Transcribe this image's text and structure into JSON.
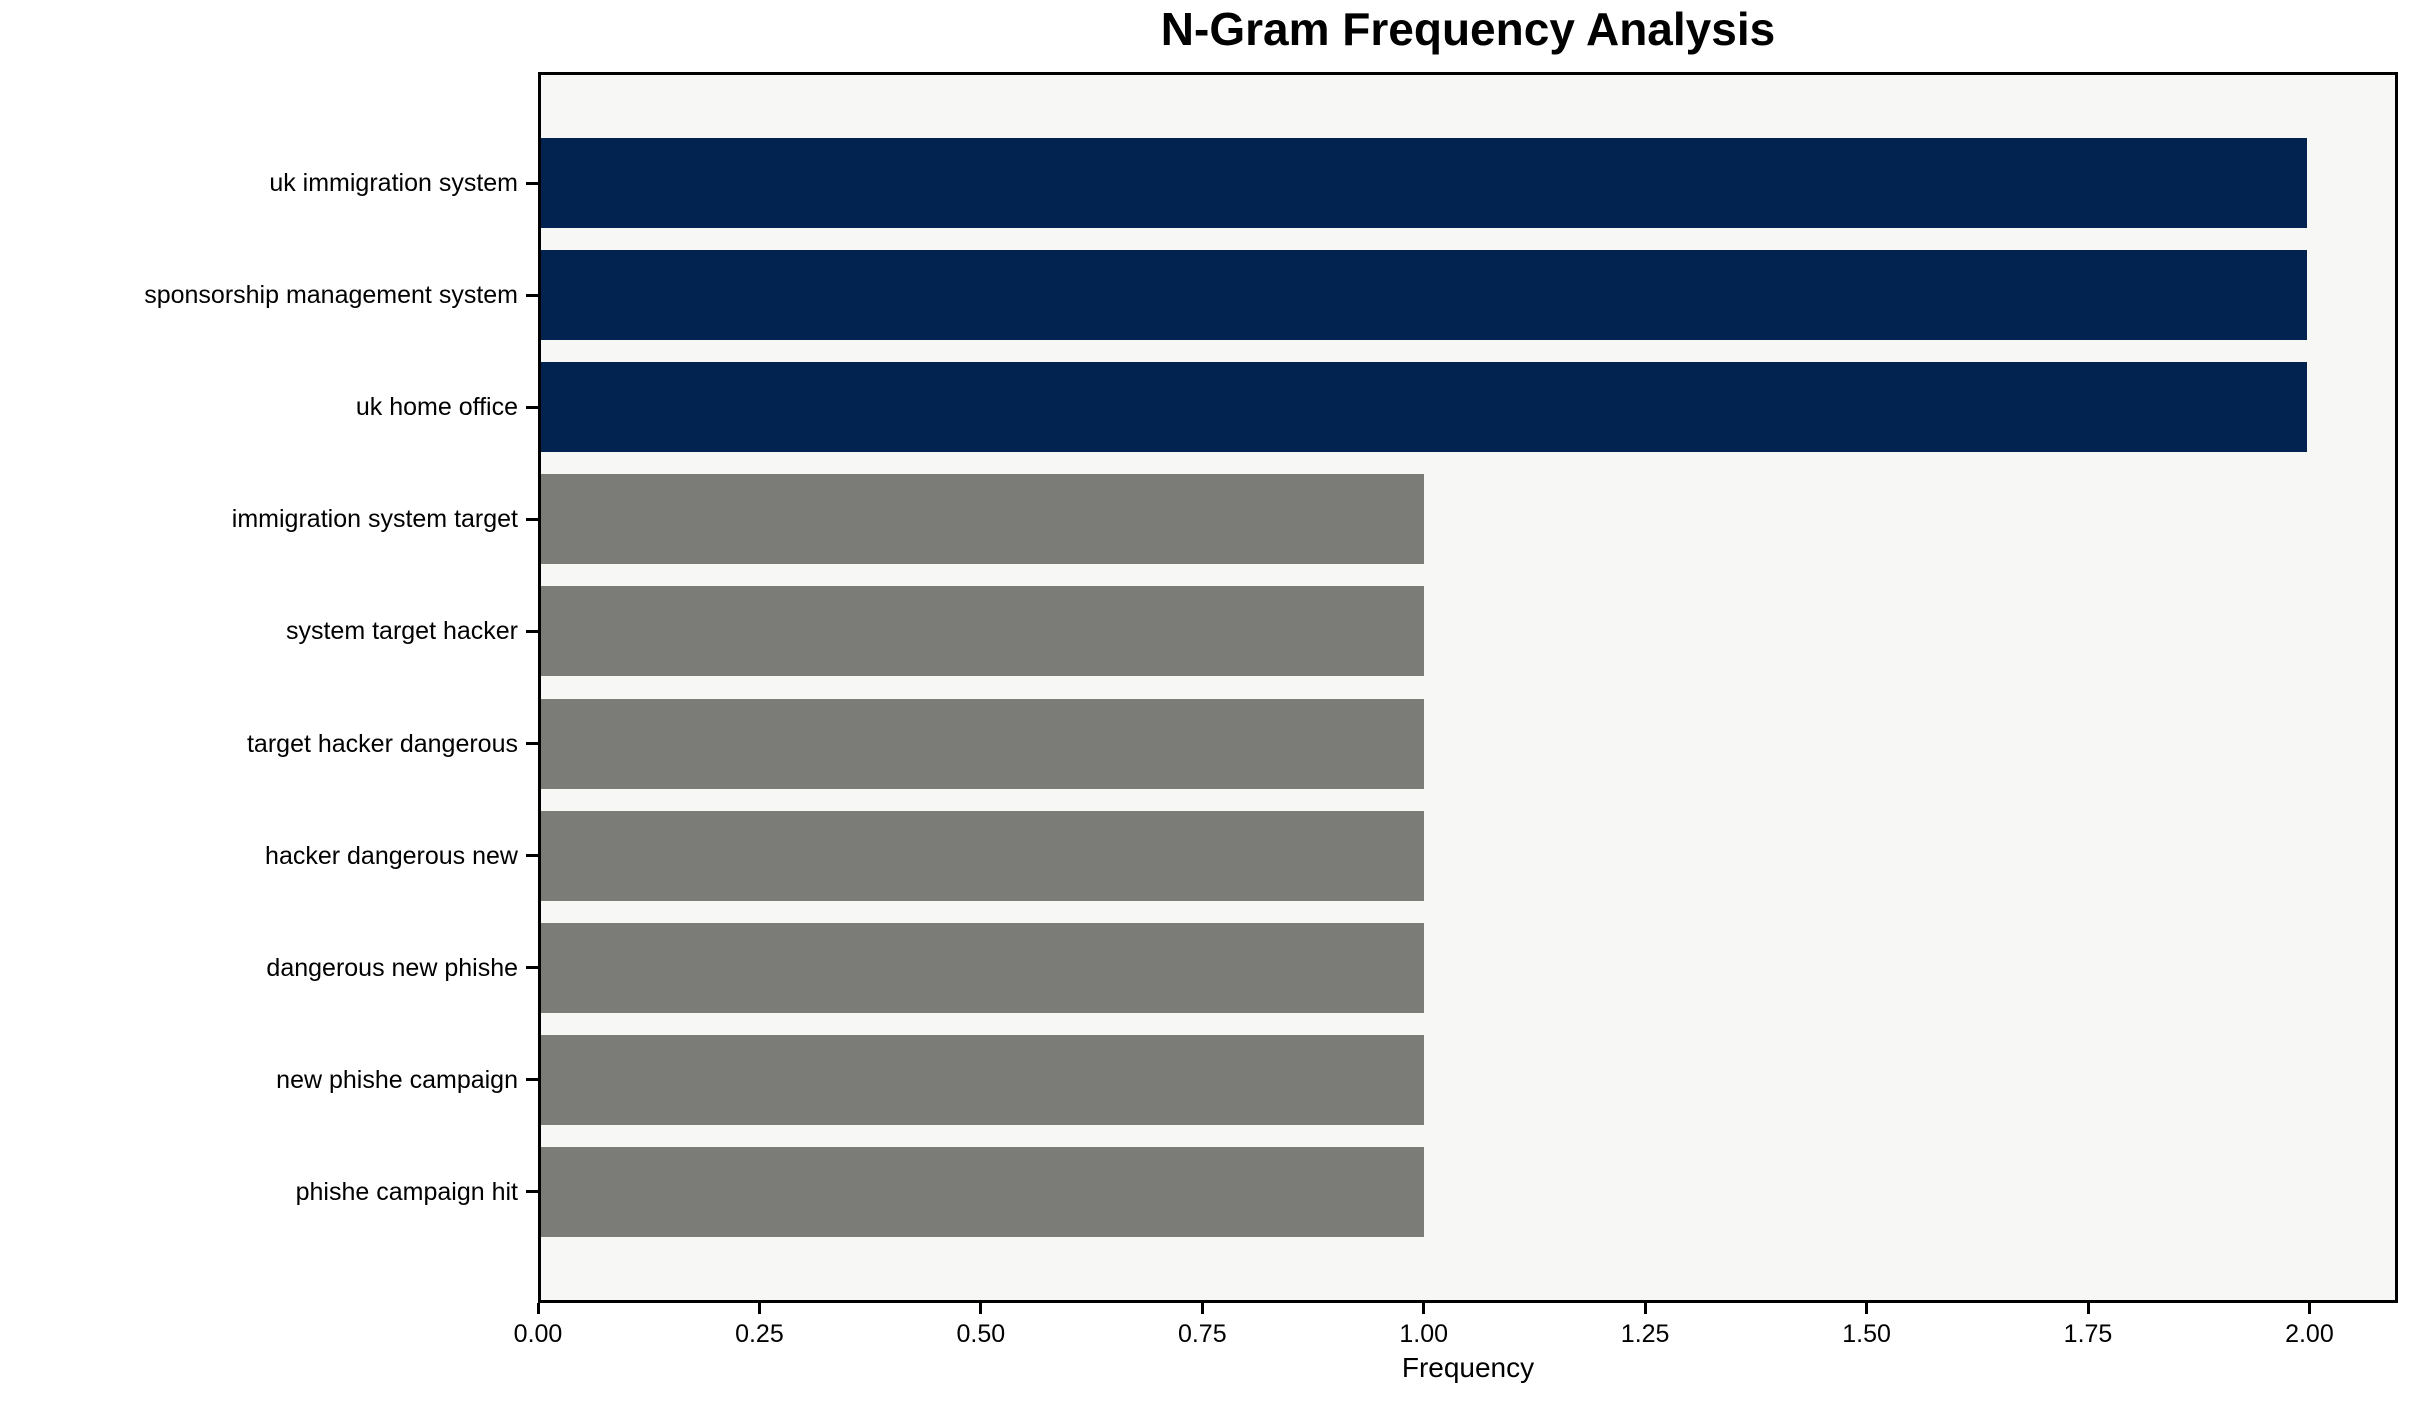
{
  "chart_data": {
    "type": "bar",
    "orientation": "horizontal",
    "title": "N-Gram Frequency Analysis",
    "xlabel": "Frequency",
    "ylabel": "",
    "categories": [
      "uk immigration system",
      "sponsorship management system",
      "uk home office",
      "immigration system target",
      "system target hacker",
      "target hacker dangerous",
      "hacker dangerous new",
      "dangerous new phishe",
      "new phishe campaign",
      "phishe campaign hit"
    ],
    "values": [
      2,
      2,
      2,
      1,
      1,
      1,
      1,
      1,
      1,
      1
    ],
    "bar_colors": [
      "#022350",
      "#022350",
      "#022350",
      "#7b7b78",
      "#7b7b78",
      "#7b7b78",
      "#7b7b78",
      "#7b7b78",
      "#7b7b78",
      "#7b7b78"
    ],
    "xlim": [
      0,
      2.1
    ],
    "xticks": [
      {
        "value": 0.0,
        "label": "0.00"
      },
      {
        "value": 0.25,
        "label": "0.25"
      },
      {
        "value": 0.5,
        "label": "0.50"
      },
      {
        "value": 0.75,
        "label": "0.75"
      },
      {
        "value": 1.0,
        "label": "1.00"
      },
      {
        "value": 1.25,
        "label": "1.25"
      },
      {
        "value": 1.5,
        "label": "1.50"
      },
      {
        "value": 1.75,
        "label": "1.75"
      },
      {
        "value": 2.0,
        "label": "2.00"
      }
    ],
    "grid": false,
    "legend": false,
    "colors": {
      "highlight_bar": "#022350",
      "default_bar": "#7b7b78",
      "plot_background": "#f7f7f5",
      "figure_background": "#ffffff",
      "axis": "#000000",
      "text": "#000000"
    }
  }
}
